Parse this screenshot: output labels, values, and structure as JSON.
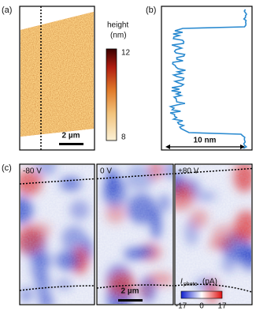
{
  "panel_a": {
    "label": "(a)",
    "colorbar": {
      "title": "height",
      "unit": "(nm)",
      "max": 12,
      "min": 8
    },
    "scale_bar": "2 µm"
  },
  "panel_b": {
    "label": "(b)",
    "arrow_label": "10 nm"
  },
  "panel_c": {
    "label": "(c)",
    "maps": [
      "-80 V",
      "0 V",
      "+80 V"
    ],
    "scale_bar": "2 µm",
    "colorbar": {
      "symbol": "I",
      "subscript": "photo",
      "unit": "(pA)",
      "min": -17,
      "mid": 0,
      "max": 17
    }
  }
}
